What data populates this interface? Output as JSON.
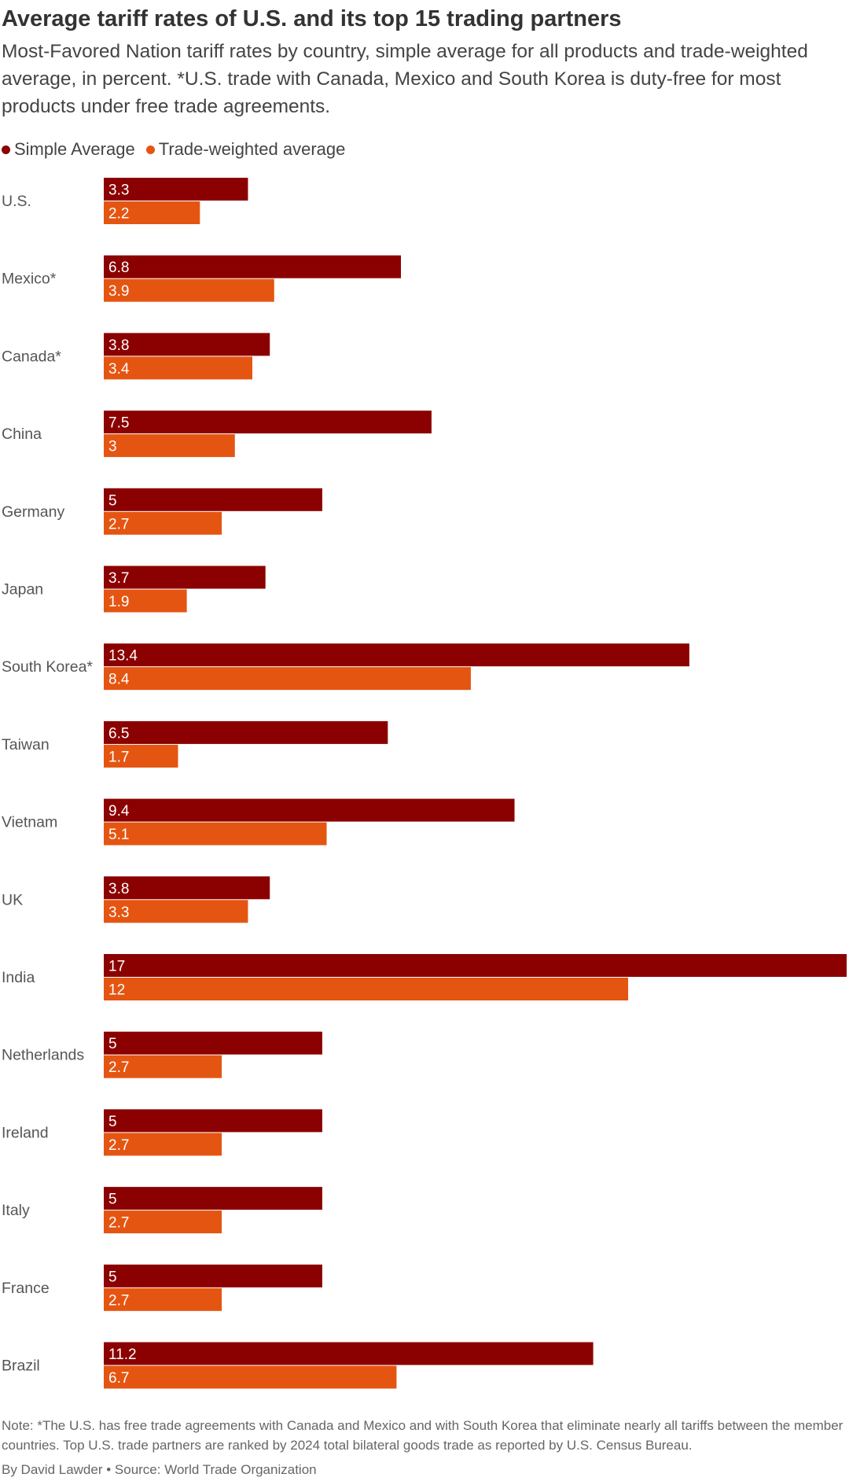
{
  "title": "Average tariff rates of U.S. and its top 15 trading partners",
  "subtitle": "Most-Favored Nation tariff rates by country, simple average for all products and trade-weighted average, in percent. *U.S. trade with Canada, Mexico and South Korea is duty-free for most products under free trade agreements.",
  "legend": {
    "simple": "Simple Average",
    "weighted": "Trade-weighted average"
  },
  "colors": {
    "simple": "#8b0000",
    "weighted": "#e55512"
  },
  "note": "Note: *The U.S. has free trade agreements with Canada and Mexico and with South Korea that eliminate nearly all tariffs between the member countries. Top U.S. trade partners are ranked by 2024 total bilateral goods trade as reported by U.S. Census Bureau.",
  "source": "By David Lawder • Source: World Trade Organization",
  "chart_data": {
    "type": "bar",
    "orientation": "horizontal",
    "categories": [
      "U.S.",
      "Mexico*",
      "Canada*",
      "China",
      "Germany",
      "Japan",
      "South Korea*",
      "Taiwan",
      "Vietnam",
      "UK",
      "India",
      "Netherlands",
      "Ireland",
      "Italy",
      "France",
      "Brazil"
    ],
    "series": [
      {
        "name": "Simple Average",
        "values": [
          3.3,
          6.8,
          3.8,
          7.5,
          5,
          3.7,
          13.4,
          6.5,
          9.4,
          3.8,
          17,
          5,
          5,
          5,
          5,
          11.2
        ]
      },
      {
        "name": "Trade-weighted average",
        "values": [
          2.2,
          3.9,
          3.4,
          3,
          2.7,
          1.9,
          8.4,
          1.7,
          5.1,
          3.3,
          12,
          2.7,
          2.7,
          2.7,
          2.7,
          6.7
        ]
      }
    ],
    "xlim": [
      0,
      17
    ],
    "grid": false,
    "legend_position": "top-left",
    "data_labels": true
  }
}
